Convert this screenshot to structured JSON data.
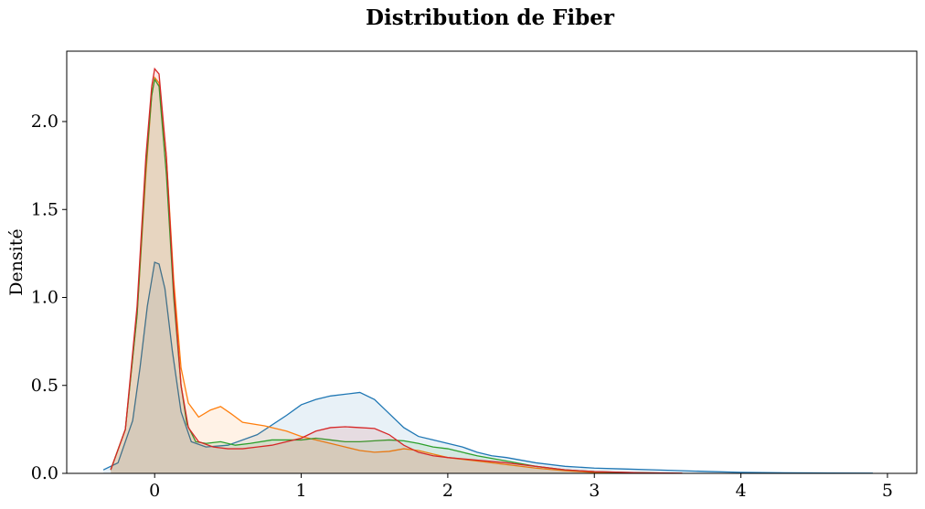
{
  "chart_data": {
    "type": "area",
    "title": "Distribution de Fiber",
    "xlabel": "",
    "ylabel": "Densité",
    "xlim": [
      -0.6,
      5.2
    ],
    "ylim": [
      0,
      2.4
    ],
    "x_ticks": [
      0,
      1,
      2,
      3,
      4,
      5
    ],
    "y_ticks": [
      0.0,
      0.5,
      1.0,
      1.5,
      2.0
    ],
    "x_tick_labels": [
      "0",
      "1",
      "2",
      "3",
      "4",
      "5"
    ],
    "y_tick_labels": [
      "0.0",
      "0.5",
      "1.0",
      "1.5",
      "2.0"
    ],
    "grid": false,
    "legend": "none",
    "series": [
      {
        "color": "#1f77b4",
        "fill_opacity": 0.1,
        "points": [
          [
            -0.35,
            0.02
          ],
          [
            -0.25,
            0.06
          ],
          [
            -0.15,
            0.3
          ],
          [
            -0.1,
            0.6
          ],
          [
            -0.05,
            0.95
          ],
          [
            0,
            1.2
          ],
          [
            0.03,
            1.19
          ],
          [
            0.07,
            1.05
          ],
          [
            0.12,
            0.7
          ],
          [
            0.18,
            0.35
          ],
          [
            0.25,
            0.18
          ],
          [
            0.35,
            0.15
          ],
          [
            0.5,
            0.16
          ],
          [
            0.7,
            0.22
          ],
          [
            0.9,
            0.33
          ],
          [
            1.0,
            0.39
          ],
          [
            1.1,
            0.42
          ],
          [
            1.2,
            0.44
          ],
          [
            1.3,
            0.45
          ],
          [
            1.4,
            0.46
          ],
          [
            1.5,
            0.42
          ],
          [
            1.6,
            0.34
          ],
          [
            1.7,
            0.26
          ],
          [
            1.8,
            0.21
          ],
          [
            1.9,
            0.19
          ],
          [
            2.0,
            0.17
          ],
          [
            2.1,
            0.15
          ],
          [
            2.2,
            0.12
          ],
          [
            2.3,
            0.1
          ],
          [
            2.4,
            0.09
          ],
          [
            2.6,
            0.06
          ],
          [
            2.8,
            0.04
          ],
          [
            3.0,
            0.03
          ],
          [
            3.2,
            0.025
          ],
          [
            3.4,
            0.02
          ],
          [
            3.6,
            0.015
          ],
          [
            3.8,
            0.01
          ],
          [
            4.0,
            0.006
          ],
          [
            4.3,
            0.003
          ],
          [
            4.6,
            0.002
          ],
          [
            4.9,
            0.001
          ]
        ]
      },
      {
        "color": "#ff7f0e",
        "fill_opacity": 0.1,
        "points": [
          [
            -0.3,
            0.02
          ],
          [
            -0.2,
            0.25
          ],
          [
            -0.12,
            0.9
          ],
          [
            -0.06,
            1.7
          ],
          [
            -0.02,
            2.15
          ],
          [
            0,
            2.25
          ],
          [
            0.03,
            2.22
          ],
          [
            0.08,
            1.8
          ],
          [
            0.13,
            1.1
          ],
          [
            0.18,
            0.6
          ],
          [
            0.23,
            0.4
          ],
          [
            0.3,
            0.32
          ],
          [
            0.38,
            0.36
          ],
          [
            0.45,
            0.38
          ],
          [
            0.52,
            0.34
          ],
          [
            0.6,
            0.29
          ],
          [
            0.75,
            0.27
          ],
          [
            0.9,
            0.24
          ],
          [
            1.0,
            0.21
          ],
          [
            1.1,
            0.19
          ],
          [
            1.2,
            0.17
          ],
          [
            1.3,
            0.15
          ],
          [
            1.4,
            0.13
          ],
          [
            1.5,
            0.12
          ],
          [
            1.6,
            0.125
          ],
          [
            1.7,
            0.14
          ],
          [
            1.8,
            0.13
          ],
          [
            1.9,
            0.11
          ],
          [
            2.0,
            0.09
          ],
          [
            2.2,
            0.07
          ],
          [
            2.4,
            0.05
          ],
          [
            2.6,
            0.03
          ],
          [
            2.8,
            0.015
          ],
          [
            3.0,
            0.005
          ],
          [
            3.2,
            0.001
          ]
        ]
      },
      {
        "color": "#2ca02c",
        "fill_opacity": 0.1,
        "points": [
          [
            -0.3,
            0.02
          ],
          [
            -0.2,
            0.25
          ],
          [
            -0.12,
            0.9
          ],
          [
            -0.06,
            1.75
          ],
          [
            -0.02,
            2.15
          ],
          [
            0,
            2.24
          ],
          [
            0.03,
            2.2
          ],
          [
            0.08,
            1.7
          ],
          [
            0.13,
            1.0
          ],
          [
            0.18,
            0.5
          ],
          [
            0.22,
            0.28
          ],
          [
            0.28,
            0.18
          ],
          [
            0.35,
            0.17
          ],
          [
            0.45,
            0.18
          ],
          [
            0.55,
            0.16
          ],
          [
            0.65,
            0.17
          ],
          [
            0.8,
            0.19
          ],
          [
            1.0,
            0.19
          ],
          [
            1.1,
            0.2
          ],
          [
            1.2,
            0.19
          ],
          [
            1.3,
            0.18
          ],
          [
            1.4,
            0.18
          ],
          [
            1.5,
            0.185
          ],
          [
            1.6,
            0.19
          ],
          [
            1.7,
            0.185
          ],
          [
            1.8,
            0.17
          ],
          [
            1.9,
            0.15
          ],
          [
            2.0,
            0.14
          ],
          [
            2.1,
            0.12
          ],
          [
            2.2,
            0.1
          ],
          [
            2.4,
            0.07
          ],
          [
            2.6,
            0.04
          ],
          [
            2.8,
            0.02
          ],
          [
            3.0,
            0.01
          ],
          [
            3.2,
            0.005
          ],
          [
            3.5,
            0.001
          ]
        ]
      },
      {
        "color": "#d62728",
        "fill_opacity": 0.1,
        "points": [
          [
            -0.3,
            0.02
          ],
          [
            -0.2,
            0.25
          ],
          [
            -0.12,
            0.95
          ],
          [
            -0.06,
            1.8
          ],
          [
            -0.02,
            2.2
          ],
          [
            0,
            2.3
          ],
          [
            0.03,
            2.27
          ],
          [
            0.08,
            1.8
          ],
          [
            0.13,
            1.05
          ],
          [
            0.18,
            0.5
          ],
          [
            0.23,
            0.26
          ],
          [
            0.3,
            0.18
          ],
          [
            0.4,
            0.15
          ],
          [
            0.5,
            0.14
          ],
          [
            0.6,
            0.14
          ],
          [
            0.7,
            0.15
          ],
          [
            0.8,
            0.16
          ],
          [
            0.9,
            0.18
          ],
          [
            1.0,
            0.2
          ],
          [
            1.1,
            0.24
          ],
          [
            1.2,
            0.26
          ],
          [
            1.3,
            0.265
          ],
          [
            1.4,
            0.26
          ],
          [
            1.5,
            0.255
          ],
          [
            1.6,
            0.22
          ],
          [
            1.7,
            0.16
          ],
          [
            1.8,
            0.12
          ],
          [
            1.9,
            0.1
          ],
          [
            2.0,
            0.09
          ],
          [
            2.2,
            0.075
          ],
          [
            2.4,
            0.06
          ],
          [
            2.6,
            0.04
          ],
          [
            2.8,
            0.02
          ],
          [
            3.0,
            0.01
          ],
          [
            3.3,
            0.004
          ],
          [
            3.6,
            0.001
          ]
        ]
      }
    ]
  }
}
